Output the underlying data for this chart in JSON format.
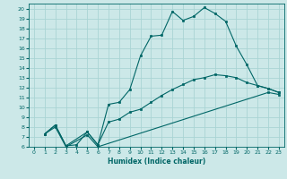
{
  "xlabel": "Humidex (Indice chaleur)",
  "background_color": "#cce8e8",
  "grid_color": "#aad4d4",
  "line_color": "#006666",
  "xlim": [
    -0.5,
    23.5
  ],
  "ylim": [
    6,
    20.5
  ],
  "xticks": [
    0,
    1,
    2,
    3,
    4,
    5,
    6,
    7,
    8,
    9,
    10,
    11,
    12,
    13,
    14,
    15,
    16,
    17,
    18,
    19,
    20,
    21,
    22,
    23
  ],
  "yticks": [
    6,
    7,
    8,
    9,
    10,
    11,
    12,
    13,
    14,
    15,
    16,
    17,
    18,
    19,
    20
  ],
  "line1_x": [
    1,
    2,
    3,
    4,
    5,
    6,
    7,
    8,
    9,
    10,
    11,
    12,
    13,
    14,
    15,
    16,
    17,
    18,
    19,
    20,
    21,
    22,
    23
  ],
  "line1_y": [
    7.3,
    8.2,
    6.1,
    6.2,
    7.5,
    6.2,
    10.3,
    10.5,
    11.8,
    15.2,
    17.2,
    17.3,
    19.7,
    18.8,
    19.2,
    20.1,
    19.5,
    18.7,
    16.2,
    14.3,
    12.2,
    11.9,
    11.5
  ],
  "line2_x": [
    1,
    2,
    3,
    5,
    6,
    7,
    8,
    9,
    10,
    11,
    12,
    13,
    14,
    15,
    16,
    17,
    18,
    19,
    20,
    21,
    22,
    23
  ],
  "line2_y": [
    7.3,
    8.2,
    6.1,
    7.5,
    6.2,
    8.5,
    8.8,
    9.5,
    9.8,
    10.5,
    11.2,
    11.8,
    12.3,
    12.8,
    13.0,
    13.3,
    13.2,
    13.0,
    12.5,
    12.2,
    11.9,
    11.5
  ],
  "line3_x": [
    1,
    2,
    3,
    5,
    6,
    22,
    23
  ],
  "line3_y": [
    7.3,
    8.0,
    6.0,
    7.2,
    6.0,
    11.5,
    11.3
  ]
}
